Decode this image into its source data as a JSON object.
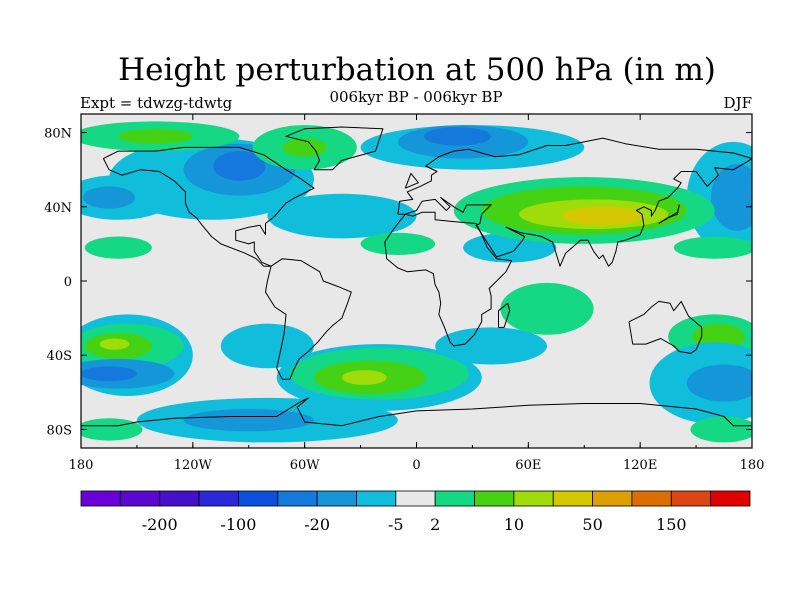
{
  "title": "Height perturbation at 500 hPa (in m)",
  "subtitle_left": "Expt = tdwzg-tdwtg",
  "subtitle_center": "006kyr BP - 006kyr BP",
  "subtitle_right": "DJF",
  "map": {
    "lon_range": [
      -180,
      180
    ],
    "lat_range": [
      -90,
      90
    ],
    "x_ticks": [
      {
        "value": -180,
        "label": "180"
      },
      {
        "value": -120,
        "label": "120W"
      },
      {
        "value": -60,
        "label": "60W"
      },
      {
        "value": 0,
        "label": "0"
      },
      {
        "value": 60,
        "label": "60E"
      },
      {
        "value": 120,
        "label": "120E"
      },
      {
        "value": 180,
        "label": "180"
      }
    ],
    "y_ticks": [
      {
        "value": 80,
        "label": "80N"
      },
      {
        "value": 40,
        "label": "40N"
      },
      {
        "value": 0,
        "label": "0"
      },
      {
        "value": -40,
        "label": "40S"
      },
      {
        "value": -80,
        "label": "80S"
      }
    ],
    "background_color": "#e8e8e8"
  },
  "colorbar": {
    "colors": [
      "#6a00d8",
      "#5a08d0",
      "#4410c8",
      "#2a28d8",
      "#0a50dc",
      "#1478dc",
      "#1496d8",
      "#10bedc",
      "#e8e8e8",
      "#14d884",
      "#46d214",
      "#a0dc0a",
      "#d4c800",
      "#dca000",
      "#dc6e00",
      "#dc4614",
      "#e00000"
    ],
    "labels": [
      "-200",
      "-100",
      "-20",
      "-5",
      "2",
      "10",
      "50",
      "150"
    ],
    "label_after_box": [
      1,
      3,
      5,
      7,
      8,
      10,
      12,
      14
    ]
  },
  "field_blobs": [
    {
      "level": 7,
      "lon": -110,
      "lat": 55,
      "rlon": 55,
      "rlat": 22
    },
    {
      "level": 6,
      "lon": -95,
      "lat": 60,
      "rlon": 30,
      "rlat": 14
    },
    {
      "level": 5,
      "lon": -95,
      "lat": 62,
      "rlon": 14,
      "rlat": 8
    },
    {
      "level": 7,
      "lon": -160,
      "lat": 45,
      "rlon": 30,
      "rlat": 12
    },
    {
      "level": 6,
      "lon": -165,
      "lat": 45,
      "rlon": 14,
      "rlat": 6
    },
    {
      "level": 7,
      "lon": -40,
      "lat": 35,
      "rlon": 40,
      "rlat": 12
    },
    {
      "level": 7,
      "lon": 30,
      "lat": 72,
      "rlon": 60,
      "rlat": 12
    },
    {
      "level": 6,
      "lon": 25,
      "lat": 75,
      "rlon": 35,
      "rlat": 9
    },
    {
      "level": 5,
      "lon": 22,
      "lat": 78,
      "rlon": 18,
      "rlat": 5
    },
    {
      "level": 7,
      "lon": 170,
      "lat": 45,
      "rlon": 25,
      "rlat": 30
    },
    {
      "level": 6,
      "lon": 172,
      "lat": 45,
      "rlon": 14,
      "rlat": 18
    },
    {
      "level": 7,
      "lon": 50,
      "lat": 18,
      "rlon": 25,
      "rlat": 8
    },
    {
      "level": 9,
      "lon": -140,
      "lat": 78,
      "rlon": 45,
      "rlat": 8
    },
    {
      "level": 10,
      "lon": -140,
      "lat": 78,
      "rlon": 20,
      "rlat": 4
    },
    {
      "level": 9,
      "lon": -60,
      "lat": 72,
      "rlon": 28,
      "rlat": 12
    },
    {
      "level": 10,
      "lon": -60,
      "lat": 72,
      "rlon": 12,
      "rlat": 5
    },
    {
      "level": 9,
      "lon": 90,
      "lat": 38,
      "rlon": 70,
      "rlat": 18
    },
    {
      "level": 10,
      "lon": 90,
      "lat": 38,
      "rlon": 55,
      "rlat": 13
    },
    {
      "level": 11,
      "lon": 95,
      "lat": 36,
      "rlon": 40,
      "rlat": 8
    },
    {
      "level": 12,
      "lon": 100,
      "lat": 35,
      "rlon": 22,
      "rlat": 5
    },
    {
      "level": 9,
      "lon": -160,
      "lat": 18,
      "rlon": 18,
      "rlat": 6
    },
    {
      "level": 9,
      "lon": -10,
      "lat": 20,
      "rlon": 20,
      "rlat": 6
    },
    {
      "level": 9,
      "lon": 160,
      "lat": 18,
      "rlon": 22,
      "rlat": 6
    },
    {
      "level": 9,
      "lon": 70,
      "lat": -15,
      "rlon": 25,
      "rlat": 14
    },
    {
      "level": 9,
      "lon": 160,
      "lat": -30,
      "rlon": 25,
      "rlat": 12
    },
    {
      "level": 10,
      "lon": 162,
      "lat": -30,
      "rlon": 14,
      "rlat": 7
    },
    {
      "level": 7,
      "lon": -155,
      "lat": -40,
      "rlon": 35,
      "rlat": 22
    },
    {
      "level": 9,
      "lon": -155,
      "lat": -35,
      "rlon": 30,
      "rlat": 12
    },
    {
      "level": 10,
      "lon": -160,
      "lat": -35,
      "rlon": 18,
      "rlat": 7
    },
    {
      "level": 11,
      "lon": -162,
      "lat": -34,
      "rlon": 8,
      "rlat": 3
    },
    {
      "level": 7,
      "lon": -80,
      "lat": -35,
      "rlon": 25,
      "rlat": 12
    },
    {
      "level": 6,
      "lon": -160,
      "lat": -50,
      "rlon": 30,
      "rlat": 8
    },
    {
      "level": 5,
      "lon": -165,
      "lat": -50,
      "rlon": 15,
      "rlat": 4
    },
    {
      "level": 7,
      "lon": -20,
      "lat": -52,
      "rlon": 55,
      "rlat": 18
    },
    {
      "level": 9,
      "lon": -20,
      "lat": -50,
      "rlon": 48,
      "rlat": 14
    },
    {
      "level": 10,
      "lon": -25,
      "lat": -52,
      "rlon": 30,
      "rlat": 9
    },
    {
      "level": 11,
      "lon": -28,
      "lat": -52,
      "rlon": 12,
      "rlat": 4
    },
    {
      "level": 7,
      "lon": 40,
      "lat": -35,
      "rlon": 30,
      "rlat": 10
    },
    {
      "level": 7,
      "lon": 160,
      "lat": -55,
      "rlon": 35,
      "rlat": 22
    },
    {
      "level": 6,
      "lon": 165,
      "lat": -55,
      "rlon": 20,
      "rlat": 10
    },
    {
      "level": 7,
      "lon": -80,
      "lat": -75,
      "rlon": 70,
      "rlat": 12
    },
    {
      "level": 6,
      "lon": -90,
      "lat": -75,
      "rlon": 35,
      "rlat": 6
    },
    {
      "level": 9,
      "lon": -165,
      "lat": -80,
      "rlon": 18,
      "rlat": 6
    },
    {
      "level": 9,
      "lon": 165,
      "lat": -80,
      "rlon": 18,
      "rlat": 7
    }
  ],
  "coastlines": [
    [
      [
        -168,
        66
      ],
      [
        -160,
        70
      ],
      [
        -140,
        70
      ],
      [
        -125,
        72
      ],
      [
        -95,
        72
      ],
      [
        -82,
        68
      ],
      [
        -70,
        60
      ],
      [
        -62,
        55
      ],
      [
        -55,
        50
      ],
      [
        -65,
        45
      ],
      [
        -70,
        42
      ],
      [
        -76,
        35
      ],
      [
        -81,
        31
      ],
      [
        -81,
        25
      ],
      [
        -84,
        30
      ],
      [
        -90,
        29
      ],
      [
        -97,
        27
      ],
      [
        -97,
        22
      ],
      [
        -90,
        20
      ],
      [
        -87,
        21
      ],
      [
        -87,
        16
      ],
      [
        -83,
        10
      ],
      [
        -78,
        8
      ],
      [
        -82,
        8
      ],
      [
        -86,
        12
      ],
      [
        -92,
        15
      ],
      [
        -105,
        20
      ],
      [
        -110,
        24
      ],
      [
        -115,
        30
      ],
      [
        -118,
        34
      ],
      [
        -122,
        37
      ],
      [
        -124,
        42
      ],
      [
        -124,
        48
      ],
      [
        -130,
        54
      ],
      [
        -138,
        59
      ],
      [
        -148,
        60
      ],
      [
        -158,
        57
      ],
      [
        -165,
        60
      ],
      [
        -168,
        66
      ]
    ],
    [
      [
        -78,
        8
      ],
      [
        -72,
        12
      ],
      [
        -62,
        11
      ],
      [
        -52,
        5
      ],
      [
        -50,
        0
      ],
      [
        -42,
        -3
      ],
      [
        -35,
        -6
      ],
      [
        -37,
        -12
      ],
      [
        -40,
        -20
      ],
      [
        -45,
        -24
      ],
      [
        -48,
        -27
      ],
      [
        -53,
        -33
      ],
      [
        -58,
        -38
      ],
      [
        -63,
        -42
      ],
      [
        -66,
        -48
      ],
      [
        -68,
        -53
      ],
      [
        -72,
        -53
      ],
      [
        -75,
        -47
      ],
      [
        -73,
        -38
      ],
      [
        -71,
        -28
      ],
      [
        -70,
        -18
      ],
      [
        -76,
        -14
      ],
      [
        -81,
        -6
      ],
      [
        -80,
        0
      ],
      [
        -78,
        8
      ]
    ],
    [
      [
        -10,
        36
      ],
      [
        -9,
        43
      ],
      [
        -2,
        44
      ],
      [
        -5,
        48
      ],
      [
        2,
        51
      ],
      [
        8,
        54
      ],
      [
        8,
        57
      ],
      [
        11,
        59
      ],
      [
        5,
        62
      ],
      [
        12,
        67
      ],
      [
        20,
        70
      ],
      [
        28,
        71
      ],
      [
        35,
        69
      ],
      [
        42,
        67
      ],
      [
        55,
        68
      ],
      [
        70,
        73
      ],
      [
        80,
        73
      ],
      [
        100,
        77
      ],
      [
        112,
        74
      ],
      [
        130,
        71
      ],
      [
        150,
        71
      ],
      [
        170,
        69
      ],
      [
        180,
        66
      ]
    ],
    [
      [
        -10,
        36
      ],
      [
        -6,
        36
      ],
      [
        0,
        38
      ],
      [
        3,
        43
      ],
      [
        10,
        44
      ],
      [
        16,
        38
      ],
      [
        18,
        40
      ],
      [
        13,
        45
      ],
      [
        20,
        40
      ],
      [
        25,
        37
      ],
      [
        27,
        41
      ],
      [
        40,
        41
      ],
      [
        35,
        36
      ],
      [
        34,
        31
      ],
      [
        32,
        30
      ],
      [
        43,
        13
      ],
      [
        52,
        16
      ],
      [
        57,
        22
      ],
      [
        58,
        24
      ],
      [
        48,
        29
      ],
      [
        56,
        26
      ],
      [
        62,
        25
      ],
      [
        67,
        24
      ],
      [
        73,
        21
      ],
      [
        77,
        8
      ],
      [
        80,
        15
      ],
      [
        88,
        22
      ],
      [
        92,
        22
      ],
      [
        95,
        16
      ],
      [
        98,
        12
      ],
      [
        100,
        14
      ],
      [
        103,
        8
      ],
      [
        105,
        10
      ],
      [
        107,
        16
      ],
      [
        108,
        21
      ],
      [
        112,
        22
      ],
      [
        120,
        25
      ],
      [
        122,
        30
      ],
      [
        121,
        36
      ],
      [
        118,
        38
      ],
      [
        122,
        40
      ],
      [
        126,
        38
      ],
      [
        126,
        35
      ],
      [
        128,
        38
      ],
      [
        130,
        43
      ],
      [
        135,
        45
      ],
      [
        140,
        50
      ],
      [
        142,
        53
      ],
      [
        138,
        55
      ],
      [
        142,
        59
      ],
      [
        150,
        59
      ],
      [
        156,
        51
      ],
      [
        162,
        57
      ],
      [
        160,
        61
      ],
      [
        170,
        60
      ],
      [
        177,
        64
      ],
      [
        180,
        66
      ]
    ],
    [
      [
        -17,
        21
      ],
      [
        -16,
        12
      ],
      [
        -10,
        7
      ],
      [
        -5,
        5
      ],
      [
        5,
        6
      ],
      [
        9,
        4
      ],
      [
        10,
        -2
      ],
      [
        12,
        -6
      ],
      [
        13,
        -12
      ],
      [
        12,
        -18
      ],
      [
        15,
        -25
      ],
      [
        18,
        -33
      ],
      [
        20,
        -35
      ],
      [
        26,
        -34
      ],
      [
        31,
        -29
      ],
      [
        35,
        -22
      ],
      [
        35,
        -18
      ],
      [
        40,
        -15
      ],
      [
        40,
        -8
      ],
      [
        39,
        -4
      ],
      [
        42,
        -1
      ],
      [
        48,
        5
      ],
      [
        51,
        11
      ],
      [
        43,
        12
      ],
      [
        38,
        18
      ],
      [
        35,
        25
      ],
      [
        32,
        31
      ],
      [
        20,
        32
      ],
      [
        10,
        33
      ],
      [
        10,
        37
      ],
      [
        3,
        37
      ],
      [
        -2,
        35
      ],
      [
        -6,
        36
      ],
      [
        -10,
        31
      ],
      [
        -13,
        27
      ],
      [
        -17,
        21
      ]
    ],
    [
      [
        114,
        -22
      ],
      [
        116,
        -34
      ],
      [
        123,
        -34
      ],
      [
        131,
        -31
      ],
      [
        138,
        -35
      ],
      [
        141,
        -38
      ],
      [
        147,
        -39
      ],
      [
        150,
        -37
      ],
      [
        153,
        -30
      ],
      [
        153,
        -25
      ],
      [
        146,
        -19
      ],
      [
        142,
        -11
      ],
      [
        138,
        -16
      ],
      [
        136,
        -12
      ],
      [
        130,
        -11
      ],
      [
        126,
        -14
      ],
      [
        122,
        -18
      ],
      [
        114,
        -22
      ]
    ],
    [
      [
        -55,
        60
      ],
      [
        -45,
        60
      ],
      [
        -40,
        65
      ],
      [
        -22,
        70
      ],
      [
        -20,
        76
      ],
      [
        -18,
        82
      ],
      [
        -40,
        83
      ],
      [
        -60,
        82
      ],
      [
        -70,
        78
      ],
      [
        -58,
        75
      ],
      [
        -54,
        70
      ],
      [
        -52,
        65
      ],
      [
        -55,
        60
      ]
    ],
    [
      [
        44,
        -25
      ],
      [
        47,
        -25
      ],
      [
        50,
        -16
      ],
      [
        49,
        -12
      ],
      [
        44,
        -16
      ],
      [
        44,
        -25
      ]
    ],
    [
      [
        -6,
        50
      ],
      [
        -3,
        58
      ],
      [
        1,
        53
      ],
      [
        -6,
        50
      ]
    ],
    [
      [
        130,
        31
      ],
      [
        135,
        34
      ],
      [
        140,
        36
      ],
      [
        141,
        41
      ],
      [
        140,
        37
      ],
      [
        133,
        33
      ],
      [
        130,
        31
      ]
    ],
    [
      [
        -180,
        -78
      ],
      [
        -160,
        -78
      ],
      [
        -150,
        -76
      ],
      [
        -130,
        -74
      ],
      [
        -100,
        -73
      ],
      [
        -75,
        -73
      ],
      [
        -62,
        -65
      ],
      [
        -58,
        -63
      ],
      [
        -64,
        -68
      ],
      [
        -60,
        -76
      ],
      [
        -40,
        -78
      ],
      [
        -20,
        -73
      ],
      [
        0,
        -70
      ],
      [
        30,
        -69
      ],
      [
        60,
        -67
      ],
      [
        90,
        -66
      ],
      [
        120,
        -66
      ],
      [
        150,
        -69
      ],
      [
        165,
        -73
      ],
      [
        170,
        -78
      ],
      [
        180,
        -78
      ]
    ]
  ]
}
